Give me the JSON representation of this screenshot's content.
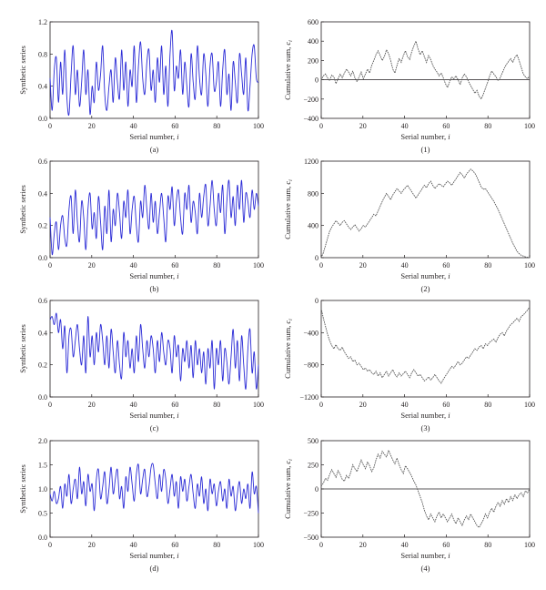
{
  "figure": {
    "left_ylabel": "Synthetic series",
    "right_ylabel": "Cumulative sum, ",
    "right_ylabel_sub": "i",
    "xlabel_text": "Serial number, ",
    "xlabel_italic": "i"
  },
  "chart_data": [
    {
      "type": "line",
      "caption": "(a)",
      "line_color": "#2b2bd6",
      "line_style": "solid",
      "xlim": [
        0,
        100
      ],
      "ylim": [
        0,
        1.2
      ],
      "xticks": [
        0,
        20,
        40,
        60,
        80,
        100
      ],
      "yticks": [
        0,
        0.4,
        0.8,
        1.2
      ],
      "ytick_labels": [
        "0.0",
        "0.4",
        "0.8",
        "1.2"
      ],
      "zero_line": false,
      "xlabel": "Serial number, i",
      "ylabel": "Synthetic series",
      "series": [
        {
          "values": [
            0.5,
            0.1,
            0.6,
            0.75,
            0.2,
            0.7,
            0.3,
            0.85,
            0.25,
            0.05,
            0.55,
            0.9,
            0.3,
            0.6,
            0.15,
            0.45,
            0.85,
            0.3,
            0.6,
            0.05,
            0.4,
            0.2,
            0.7,
            0.35,
            0.55,
            0.9,
            0.3,
            0.1,
            0.4,
            0.6,
            0.2,
            0.75,
            0.45,
            0.25,
            0.85,
            0.35,
            0.7,
            0.15,
            0.6,
            0.4,
            0.9,
            0.2,
            0.65,
            0.95,
            0.5,
            0.3,
            0.7,
            0.85,
            0.35,
            0.6,
            0.2,
            0.75,
            0.45,
            0.9,
            0.3,
            0.65,
            0.15,
            0.8,
            1.08,
            0.35,
            0.65,
            0.5,
            0.85,
            0.3,
            0.7,
            0.4,
            0.15,
            0.8,
            0.45,
            0.25,
            0.9,
            0.5,
            0.3,
            0.8,
            0.55,
            0.15,
            0.65,
            0.8,
            0.35,
            0.45,
            0.7,
            0.15,
            0.6,
            0.85,
            0.3,
            0.55,
            0.1,
            0.7,
            0.45,
            0.2,
            0.8,
            0.55,
            0.3,
            0.75,
            0.1,
            0.4,
            0.8,
            0.9,
            0.5,
            0.45
          ]
        }
      ]
    },
    {
      "type": "line",
      "caption": "(1)",
      "line_color": "#555555",
      "line_style": "dotted",
      "xlim": [
        0,
        100
      ],
      "ylim": [
        -400,
        600
      ],
      "xticks": [
        0,
        20,
        40,
        60,
        80,
        100
      ],
      "yticks": [
        -400,
        -200,
        0,
        200,
        400,
        600
      ],
      "ytick_labels": [
        "−400",
        "−200",
        "0",
        "200",
        "400",
        "600"
      ],
      "zero_line": true,
      "xlabel": "Serial number, i",
      "ylabel": "Cumulative sum, c_i",
      "series": [
        {
          "values": [
            0,
            40,
            60,
            20,
            -10,
            50,
            30,
            -40,
            10,
            60,
            20,
            70,
            110,
            80,
            40,
            90,
            20,
            -20,
            30,
            80,
            10,
            60,
            110,
            70,
            150,
            200,
            260,
            300,
            250,
            200,
            240,
            310,
            270,
            200,
            110,
            70,
            150,
            220,
            180,
            250,
            300,
            240,
            210,
            290,
            350,
            400,
            320,
            260,
            300,
            240,
            180,
            250,
            210,
            150,
            110,
            80,
            40,
            70,
            20,
            -40,
            -80,
            -20,
            30,
            10,
            40,
            0,
            -50,
            20,
            60,
            30,
            -20,
            -60,
            -100,
            -140,
            -110,
            -170,
            -200,
            -150,
            -90,
            -30,
            40,
            90,
            60,
            30,
            -10,
            20,
            70,
            120,
            160,
            190,
            220,
            180,
            230,
            260,
            200,
            130,
            60,
            30,
            10,
            40
          ]
        }
      ]
    },
    {
      "type": "line",
      "caption": "(b)",
      "line_color": "#2b2bd6",
      "line_style": "solid",
      "xlim": [
        0,
        100
      ],
      "ylim": [
        0,
        0.6
      ],
      "xticks": [
        0,
        20,
        40,
        60,
        80,
        100
      ],
      "yticks": [
        0,
        0.2,
        0.4,
        0.6
      ],
      "ytick_labels": [
        "0.0",
        "0.2",
        "0.4",
        "0.6"
      ],
      "zero_line": false,
      "xlabel": "Serial number, i",
      "ylabel": "Synthetic series",
      "series": [
        {
          "values": [
            0.25,
            0.02,
            0.15,
            0.22,
            0.05,
            0.2,
            0.26,
            0.12,
            0.08,
            0.3,
            0.38,
            0.15,
            0.42,
            0.22,
            0.1,
            0.35,
            0.25,
            0.05,
            0.3,
            0.4,
            0.18,
            0.28,
            0.12,
            0.38,
            0.22,
            0.05,
            0.32,
            0.15,
            0.42,
            0.1,
            0.3,
            0.2,
            0.4,
            0.28,
            0.12,
            0.35,
            0.25,
            0.42,
            0.15,
            0.3,
            0.38,
            0.2,
            0.1,
            0.35,
            0.25,
            0.45,
            0.3,
            0.18,
            0.4,
            0.22,
            0.35,
            0.15,
            0.28,
            0.4,
            0.25,
            0.1,
            0.38,
            0.3,
            0.44,
            0.2,
            0.35,
            0.42,
            0.25,
            0.15,
            0.4,
            0.3,
            0.45,
            0.22,
            0.35,
            0.28,
            0.15,
            0.4,
            0.25,
            0.38,
            0.45,
            0.2,
            0.32,
            0.48,
            0.3,
            0.2,
            0.4,
            0.28,
            0.45,
            0.15,
            0.35,
            0.48,
            0.25,
            0.38,
            0.2,
            0.45,
            0.3,
            0.48,
            0.22,
            0.4,
            0.35,
            0.25,
            0.42,
            0.3,
            0.4,
            0.32
          ]
        }
      ]
    },
    {
      "type": "line",
      "caption": "(2)",
      "line_color": "#555555",
      "line_style": "dotted",
      "xlim": [
        0,
        100
      ],
      "ylim": [
        0,
        1200
      ],
      "xticks": [
        0,
        20,
        40,
        60,
        80,
        100
      ],
      "yticks": [
        0,
        400,
        800,
        1200
      ],
      "ytick_labels": [
        "0",
        "400",
        "800",
        "1200"
      ],
      "zero_line": false,
      "xlabel": "Serial number, i",
      "ylabel": "Cumulative sum, c_i",
      "series": [
        {
          "values": [
            0,
            60,
            150,
            240,
            330,
            380,
            420,
            460,
            430,
            400,
            440,
            460,
            420,
            380,
            350,
            380,
            410,
            370,
            330,
            360,
            400,
            380,
            420,
            460,
            500,
            540,
            520,
            580,
            640,
            700,
            750,
            800,
            760,
            720,
            780,
            820,
            860,
            830,
            800,
            840,
            870,
            900,
            860,
            820,
            780,
            740,
            780,
            820,
            860,
            900,
            870,
            920,
            950,
            900,
            860,
            890,
            920,
            900,
            880,
            920,
            950,
            930,
            900,
            940,
            980,
            1020,
            1060,
            1030,
            990,
            1040,
            1070,
            1100,
            1080,
            1050,
            1000,
            940,
            880,
            850,
            860,
            820,
            780,
            740,
            700,
            650,
            600,
            540,
            480,
            420,
            360,
            300,
            240,
            180,
            130,
            80,
            50,
            30,
            20,
            10,
            5,
            0
          ]
        }
      ]
    },
    {
      "type": "line",
      "caption": "(c)",
      "line_color": "#2b2bd6",
      "line_style": "solid",
      "xlim": [
        0,
        100
      ],
      "ylim": [
        0,
        0.6
      ],
      "xticks": [
        0,
        20,
        40,
        60,
        80,
        100
      ],
      "yticks": [
        0,
        0.2,
        0.4,
        0.6
      ],
      "ytick_labels": [
        "0.0",
        "0.2",
        "0.4",
        "0.6"
      ],
      "zero_line": false,
      "xlabel": "Serial number, i",
      "ylabel": "Synthetic series",
      "series": [
        {
          "values": [
            0.48,
            0.5,
            0.45,
            0.52,
            0.4,
            0.48,
            0.3,
            0.44,
            0.15,
            0.38,
            0.42,
            0.25,
            0.35,
            0.45,
            0.3,
            0.2,
            0.38,
            0.15,
            0.5,
            0.25,
            0.38,
            0.2,
            0.4,
            0.28,
            0.45,
            0.35,
            0.2,
            0.38,
            0.18,
            0.42,
            0.28,
            0.15,
            0.35,
            0.2,
            0.12,
            0.4,
            0.25,
            0.35,
            0.18,
            0.3,
            0.15,
            0.38,
            0.22,
            0.45,
            0.3,
            0.18,
            0.35,
            0.25,
            0.38,
            0.3,
            0.15,
            0.35,
            0.22,
            0.4,
            0.28,
            0.2,
            0.35,
            0.3,
            0.15,
            0.38,
            0.25,
            0.32,
            0.1,
            0.3,
            0.22,
            0.35,
            0.18,
            0.32,
            0.12,
            0.35,
            0.2,
            0.3,
            0.15,
            0.28,
            0.08,
            0.3,
            0.18,
            0.35,
            0.05,
            0.3,
            0.2,
            0.35,
            0.1,
            0.3,
            0.22,
            0.08,
            0.25,
            0.42,
            0.18,
            0.35,
            0.1,
            0.38,
            0.2,
            0.05,
            0.3,
            0.42,
            0.15,
            0.28,
            0.05,
            0.2
          ]
        }
      ]
    },
    {
      "type": "line",
      "caption": "(3)",
      "line_color": "#555555",
      "line_style": "dotted",
      "xlim": [
        0,
        100
      ],
      "ylim": [
        -1200,
        0
      ],
      "xticks": [
        0,
        20,
        40,
        60,
        80,
        100
      ],
      "yticks": [
        -1200,
        -800,
        -400,
        0
      ],
      "ytick_labels": [
        "−1200",
        "−800",
        "−400",
        "0"
      ],
      "zero_line": false,
      "xlabel": "Serial number, i",
      "ylabel": "Cumulative sum, c_i",
      "series": [
        {
          "values": [
            -100,
            -220,
            -320,
            -420,
            -500,
            -560,
            -600,
            -550,
            -600,
            -620,
            -580,
            -640,
            -680,
            -720,
            -700,
            -760,
            -740,
            -800,
            -780,
            -820,
            -860,
            -840,
            -880,
            -860,
            -900,
            -920,
            -880,
            -940,
            -900,
            -960,
            -920,
            -880,
            -940,
            -900,
            -860,
            -920,
            -950,
            -900,
            -940,
            -910,
            -880,
            -920,
            -960,
            -900,
            -860,
            -900,
            -940,
            -920,
            -960,
            -1000,
            -980,
            -950,
            -990,
            -960,
            -920,
            -960,
            -1000,
            -1030,
            -980,
            -940,
            -900,
            -860,
            -820,
            -840,
            -800,
            -760,
            -800,
            -780,
            -740,
            -700,
            -720,
            -680,
            -640,
            -600,
            -620,
            -580,
            -560,
            -600,
            -540,
            -560,
            -520,
            -500,
            -480,
            -520,
            -460,
            -420,
            -400,
            -440,
            -380,
            -340,
            -300,
            -280,
            -250,
            -220,
            -260,
            -200,
            -180,
            -150,
            -120,
            -80
          ]
        }
      ]
    },
    {
      "type": "line",
      "caption": "(d)",
      "line_color": "#2b2bd6",
      "line_style": "solid",
      "xlim": [
        0,
        100
      ],
      "ylim": [
        0,
        2.0
      ],
      "xticks": [
        0,
        20,
        40,
        60,
        80,
        100
      ],
      "yticks": [
        0,
        0.5,
        1.0,
        1.5,
        2.0
      ],
      "ytick_labels": [
        "0.0",
        "0.5",
        "1.0",
        "1.5",
        "2.0"
      ],
      "zero_line": false,
      "xlabel": "Serial number, i",
      "ylabel": "Synthetic series",
      "series": [
        {
          "values": [
            0.9,
            0.75,
            0.95,
            0.7,
            0.8,
            1.05,
            0.6,
            1.1,
            0.85,
            1.3,
            0.7,
            1.0,
            1.2,
            0.8,
            1.45,
            0.9,
            1.15,
            0.65,
            1.3,
            0.95,
            1.1,
            0.55,
            1.2,
            1.4,
            0.8,
            1.05,
            1.35,
            0.7,
            1.0,
            1.45,
            0.9,
            1.2,
            1.4,
            0.8,
            1.05,
            0.6,
            1.25,
            0.95,
            1.45,
            1.1,
            0.75,
            1.3,
            1.5,
            0.9,
            1.2,
            1.4,
            0.85,
            1.05,
            1.45,
            1.5,
            1.1,
            0.8,
            1.3,
            0.95,
            1.4,
            1.2,
            0.7,
            1.0,
            1.3,
            0.85,
            1.15,
            0.6,
            1.25,
            0.95,
            1.2,
            0.75,
            1.05,
            1.3,
            0.9,
            0.6,
            1.1,
            0.85,
            1.25,
            0.7,
            1.0,
            0.55,
            1.2,
            0.9,
            1.1,
            0.65,
            0.95,
            1.15,
            0.75,
            1.0,
            0.6,
            1.2,
            0.85,
            1.05,
            0.55,
            0.9,
            1.15,
            0.7,
            1.0,
            0.8,
            1.1,
            0.6,
            1.35,
            0.9,
            1.05,
            0.5
          ]
        }
      ]
    },
    {
      "type": "line",
      "caption": "(4)",
      "line_color": "#555555",
      "line_style": "dotted",
      "xlim": [
        0,
        100
      ],
      "ylim": [
        -500,
        500
      ],
      "xticks": [
        0,
        20,
        40,
        60,
        80,
        100
      ],
      "yticks": [
        -500,
        -250,
        0,
        250,
        500
      ],
      "ytick_labels": [
        "−500",
        "−250",
        "0",
        "250",
        "500"
      ],
      "zero_line": true,
      "xlabel": "Serial number, i",
      "ylabel": "Cumulative sum, c_i",
      "series": [
        {
          "values": [
            30,
            60,
            110,
            90,
            150,
            200,
            160,
            120,
            190,
            150,
            100,
            80,
            140,
            110,
            170,
            250,
            210,
            180,
            240,
            300,
            250,
            210,
            280,
            240,
            180,
            220,
            300,
            360,
            320,
            390,
            360,
            330,
            400,
            350,
            300,
            260,
            320,
            250,
            200,
            160,
            240,
            210,
            170,
            130,
            80,
            40,
            -20,
            -80,
            -140,
            -220,
            -280,
            -320,
            -260,
            -300,
            -340,
            -280,
            -240,
            -300,
            -260,
            -300,
            -340,
            -300,
            -260,
            -320,
            -360,
            -300,
            -340,
            -380,
            -320,
            -280,
            -320,
            -260,
            -300,
            -340,
            -380,
            -400,
            -360,
            -320,
            -260,
            -300,
            -240,
            -200,
            -240,
            -180,
            -140,
            -180,
            -120,
            -160,
            -100,
            -140,
            -80,
            -120,
            -60,
            -100,
            -60,
            -40,
            -80,
            -20,
            -40,
            0
          ]
        }
      ]
    }
  ]
}
